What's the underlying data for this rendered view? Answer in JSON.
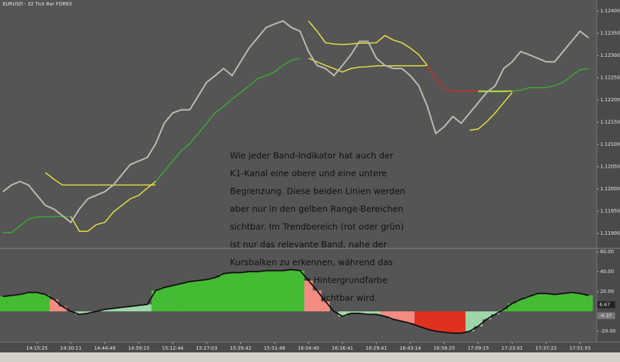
{
  "chart_data": [
    {
      "type": "line",
      "title": "EURUSD - 32 Tick Bar FOREX",
      "ylim": [
        1.11868,
        1.12425
      ],
      "yticks": [
        {
          "value": 1.124,
          "label": "1.12400"
        },
        {
          "value": 1.1235,
          "label": "1.12350"
        },
        {
          "value": 1.123,
          "label": "1.12300"
        },
        {
          "value": 1.1225,
          "label": "1.12250"
        },
        {
          "value": 1.122,
          "label": "1.12200"
        },
        {
          "value": 1.1215,
          "label": "1.12150"
        },
        {
          "value": 1.121,
          "label": "1.12100"
        },
        {
          "value": 1.1205,
          "label": "1.12050"
        },
        {
          "value": 1.12,
          "label": "1.12000"
        },
        {
          "value": 1.1195,
          "label": "1.11950"
        },
        {
          "value": 1.119,
          "label": "1.11900"
        }
      ],
      "annotation": [
        "Wie jeder Band-Indikator hat auch der",
        "K1-Kanal eine obere und eine untere",
        "Begrenzung. Diese beiden Linien werden",
        "aber nur in den gelben Range-Bereichen",
        "sichtbar. Im Trendbereich (rot oder grün)",
        "ist nur das relevante Band, nahe der",
        "Kursbalken zu erkennen, während das",
        "kursferne Band die Hintergrundfarbe",
        "annimt und somit unsichtbar wird."
      ],
      "series": [
        {
          "color": "#3aa832",
          "values": [
            1.11902,
            1.11902,
            1.11917,
            1.11932,
            1.11937,
            1.11938,
            1.11938,
            1.11938,
            1.11938,
            null,
            null,
            null,
            null,
            null,
            null,
            null,
            null,
            null,
            1.12017,
            1.1204,
            1.12063,
            1.12086,
            1.12102,
            1.12125,
            1.12148,
            1.12171,
            1.12186,
            1.12202,
            1.12217,
            1.12232,
            1.12248,
            1.12255,
            1.12263,
            1.12278,
            1.12289,
            1.12294,
            null,
            null,
            null,
            null,
            null,
            null,
            null,
            null,
            null,
            null,
            null,
            null,
            null,
            null,
            null,
            null,
            null,
            null,
            null,
            null,
            1.12218,
            1.12218,
            1.12218,
            1.12218,
            1.1222,
            1.12222,
            1.12228,
            1.12228,
            1.12228,
            1.12232,
            1.1224,
            1.12255,
            1.12268,
            1.12271
          ]
        },
        {
          "color": "#e8e040",
          "values": [
            null,
            null,
            null,
            null,
            null,
            null,
            null,
            null,
            1.11938,
            1.11905,
            1.11905,
            1.1192,
            1.11925,
            1.11948,
            1.11963,
            1.11978,
            1.11986,
            1.12002,
            1.12017,
            null,
            null,
            null,
            null,
            null,
            null,
            null,
            null,
            null,
            null,
            null,
            null,
            null,
            null,
            null,
            null,
            null,
            1.12294,
            1.12286,
            1.12278,
            1.12271,
            1.12263,
            1.12271,
            1.12274,
            1.12275,
            1.12277,
            1.12277,
            1.12277,
            1.12277,
            1.12277,
            1.12277,
            1.12278,
            null,
            null,
            null,
            null,
            1.12132,
            1.12135,
            1.12151,
            1.12171,
            1.12194,
            1.12217,
            null,
            null,
            null,
            null,
            null,
            null,
            null,
            null,
            null
          ]
        },
        {
          "color": "#e8e040",
          "values": [
            null,
            null,
            null,
            null,
            null,
            1.12037,
            1.12022,
            1.12009,
            1.12009,
            1.12009,
            1.12009,
            1.12009,
            1.12009,
            1.12009,
            1.12009,
            1.12009,
            1.12009,
            1.12009,
            1.12009,
            null,
            null,
            null,
            null,
            null,
            null,
            null,
            null,
            null,
            null,
            null,
            null,
            null,
            null,
            null,
            null,
            null,
            1.12378,
            1.12355,
            1.12329,
            1.12326,
            1.12325,
            1.12326,
            1.12328,
            1.12328,
            1.12329,
            1.12345,
            1.12335,
            1.12329,
            1.12317,
            1.12302,
            1.12278,
            null,
            null,
            null,
            null,
            null,
            1.1222,
            1.1222,
            1.1222,
            1.1222,
            1.1222,
            null,
            null,
            null,
            null,
            null,
            null,
            null,
            null,
            null
          ]
        },
        {
          "color": "#c83020",
          "values": [
            null,
            null,
            null,
            null,
            null,
            null,
            null,
            null,
            null,
            null,
            null,
            null,
            null,
            null,
            null,
            null,
            null,
            null,
            null,
            null,
            null,
            null,
            null,
            null,
            null,
            null,
            null,
            null,
            null,
            null,
            null,
            null,
            null,
            null,
            null,
            null,
            null,
            null,
            null,
            null,
            null,
            null,
            null,
            null,
            null,
            null,
            null,
            null,
            null,
            null,
            1.12278,
            1.12248,
            1.12225,
            1.1222,
            1.1222,
            1.1222,
            1.1222,
            null,
            null,
            null,
            null,
            null,
            null,
            null,
            null,
            null,
            null,
            null,
            null,
            null
          ]
        },
        {
          "color": "#bdb8ae",
          "values": [
            1.11994,
            1.12009,
            1.12017,
            1.12009,
            1.11986,
            1.11963,
            1.11955,
            1.1194,
            1.11925,
            1.11955,
            1.11978,
            1.11986,
            1.11994,
            1.12009,
            1.12032,
            1.12055,
            1.12063,
            1.12071,
            1.12102,
            1.12148,
            1.12171,
            1.12178,
            1.12178,
            1.12209,
            1.1224,
            1.12255,
            1.12271,
            1.12255,
            1.12286,
            1.12317,
            1.1234,
            1.12363,
            1.12371,
            1.12378,
            1.12363,
            1.12355,
            1.12309,
            1.12278,
            1.12271,
            1.12255,
            1.12278,
            1.12302,
            1.12332,
            1.12332,
            1.12294,
            1.12278,
            1.12271,
            1.12271,
            1.12255,
            1.12232,
            1.12186,
            1.12125,
            1.1214,
            1.12163,
            1.12148,
            1.12171,
            1.12194,
            1.12217,
            1.12232,
            1.12271,
            1.12286,
            1.12309,
            1.12302,
            1.12294,
            1.12286,
            1.12286,
            1.12309,
            1.12332,
            1.12355,
            1.1234
          ]
        }
      ]
    },
    {
      "type": "bar",
      "categories": [
        null,
        null,
        null,
        null,
        "14:15:25",
        null,
        null,
        null,
        "14:30:11",
        null,
        null,
        null,
        "14:44:49",
        null,
        null,
        null,
        "14:59:15",
        null,
        null,
        null,
        "15:12:44",
        null,
        null,
        null,
        "15:27:03",
        null,
        null,
        null,
        "15:39:42",
        null,
        null,
        null,
        "15:51:48",
        null,
        null,
        null,
        "16:04:40",
        null,
        null,
        null,
        "16:16:41",
        null,
        null,
        null,
        "16:29:41",
        null,
        null,
        null,
        "16:43:14",
        null,
        null,
        null,
        "16:56:25",
        null,
        null,
        null,
        "17:09:15",
        null,
        null,
        null,
        "17:23:01",
        null,
        null,
        null,
        "17:37:22",
        null,
        null,
        null,
        "17:51:55",
        null
      ],
      "values": [
        15,
        16,
        17,
        19,
        19,
        17,
        12,
        5,
        0,
        -3,
        -2,
        0,
        2,
        3,
        4,
        5,
        6,
        7,
        21,
        24,
        26,
        28,
        30,
        31,
        32,
        34,
        38,
        39,
        39,
        40,
        40,
        41,
        41,
        41,
        42,
        41,
        31,
        21,
        10,
        0,
        -5,
        -2,
        -2,
        -3,
        -3,
        -5,
        -8,
        -10,
        -12,
        -15,
        -18,
        -20,
        -21,
        -22,
        -22,
        -20,
        -15,
        -8,
        -3,
        2,
        8,
        12,
        15,
        18,
        18,
        17,
        18,
        19,
        18,
        16
      ],
      "colors": [
        "#44bb33",
        "#44bb33",
        "#44bb33",
        "#44bb33",
        "#44bb33",
        "#44bb33",
        "#f28b82",
        "#f28b82",
        "#f28b82",
        "#9ed6a8",
        "#9ed6a8",
        "#9ed6a8",
        "#9ed6a8",
        "#9ed6a8",
        "#9ed6a8",
        "#9ed6a8",
        "#9ed6a8",
        "#9ed6a8",
        "#44bb33",
        "#44bb33",
        "#44bb33",
        "#44bb33",
        "#44bb33",
        "#44bb33",
        "#44bb33",
        "#44bb33",
        "#44bb33",
        "#44bb33",
        "#44bb33",
        "#44bb33",
        "#44bb33",
        "#44bb33",
        "#44bb33",
        "#44bb33",
        "#44bb33",
        "#44bb33",
        "#f28b82",
        "#f28b82",
        "#f28b82",
        "#f28b82",
        "#9ed6a8",
        "#9ed6a8",
        "#9ed6a8",
        "#9ed6a8",
        "#9ed6a8",
        "#f28b82",
        "#f28b82",
        "#f28b82",
        "#f28b82",
        "#e0301e",
        "#e0301e",
        "#e0301e",
        "#e0301e",
        "#e0301e",
        "#e0301e",
        "#9ed6a8",
        "#9ed6a8",
        "#9ed6a8",
        "#9ed6a8",
        "#44bb33",
        "#44bb33",
        "#44bb33",
        "#44bb33",
        "#44bb33",
        "#44bb33",
        "#44bb33",
        "#44bb33",
        "#44bb33",
        "#44bb33",
        "#44bb33"
      ],
      "line_color": "#111111",
      "ylim": [
        -31,
        62
      ],
      "yticks": [
        {
          "value": 60,
          "label": "60.00"
        },
        {
          "value": 40,
          "label": "40.00"
        },
        {
          "value": 20,
          "label": "20.00"
        },
        {
          "value": -20,
          "label": "-20.00"
        }
      ],
      "current_values": [
        6.67,
        -4.37
      ]
    }
  ]
}
